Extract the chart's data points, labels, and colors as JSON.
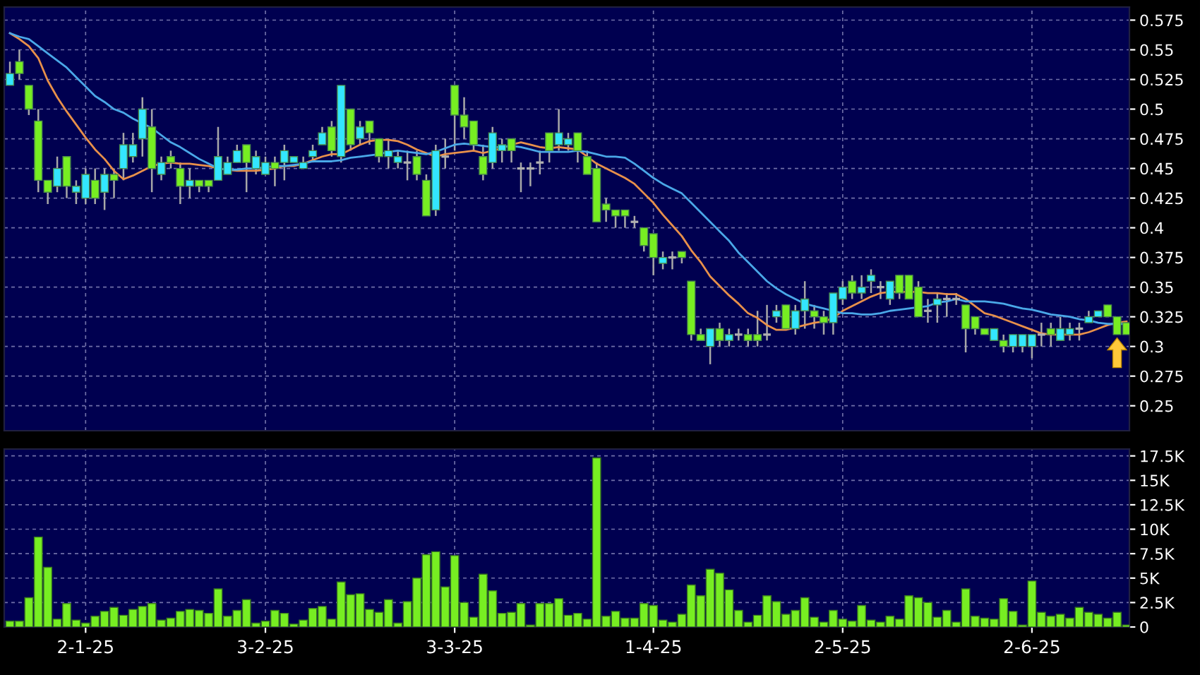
{
  "chart_data": [
    {
      "type": "candlestick",
      "categories": [
        null,
        null,
        null,
        null,
        null,
        null,
        null,
        null,
        null,
        null,
        null,
        null,
        null,
        null,
        null,
        null,
        null,
        null,
        null,
        null,
        null,
        null,
        null,
        null,
        null,
        null,
        null,
        null,
        null,
        null,
        null,
        null,
        null,
        null,
        null,
        null,
        null,
        null,
        null,
        null,
        null,
        null,
        null,
        null,
        null,
        null,
        null,
        null,
        null,
        null,
        null,
        null,
        null,
        null,
        null,
        null,
        null,
        null,
        null,
        null,
        null,
        null,
        null,
        null,
        null,
        null,
        null,
        null,
        null,
        null,
        null,
        null,
        null,
        null,
        null,
        null,
        null,
        null,
        null,
        null,
        null,
        null,
        null,
        null,
        null,
        null,
        null,
        null,
        null,
        null,
        null,
        null,
        null,
        null,
        null,
        null,
        null,
        null,
        null,
        null,
        null,
        null,
        null,
        null,
        null,
        null,
        null,
        null,
        null,
        null,
        null,
        null,
        null,
        null,
        null,
        null,
        null,
        null,
        null
      ],
      "ohlc": [
        [
          0.52,
          0.54,
          0.52,
          0.53
        ],
        [
          0.54,
          0.55,
          0.525,
          0.53
        ],
        [
          0.52,
          0.52,
          0.495,
          0.5
        ],
        [
          0.49,
          0.5,
          0.43,
          0.44
        ],
        [
          0.44,
          0.44,
          0.42,
          0.43
        ],
        [
          0.435,
          0.46,
          0.43,
          0.45
        ],
        [
          0.46,
          0.46,
          0.425,
          0.435
        ],
        [
          0.43,
          0.44,
          0.42,
          0.435
        ],
        [
          0.425,
          0.45,
          0.42,
          0.445
        ],
        [
          0.44,
          0.45,
          0.42,
          0.425
        ],
        [
          0.43,
          0.45,
          0.415,
          0.445
        ],
        [
          0.445,
          0.45,
          0.425,
          0.44
        ],
        [
          0.45,
          0.48,
          0.44,
          0.47
        ],
        [
          0.46,
          0.48,
          0.455,
          0.47
        ],
        [
          0.475,
          0.51,
          0.46,
          0.5
        ],
        [
          0.485,
          0.5,
          0.43,
          0.45
        ],
        [
          0.445,
          0.46,
          0.44,
          0.455
        ],
        [
          0.46,
          0.465,
          0.45,
          0.455
        ],
        [
          0.45,
          0.455,
          0.42,
          0.435
        ],
        [
          0.435,
          0.45,
          0.425,
          0.44
        ],
        [
          0.44,
          0.44,
          0.43,
          0.435
        ],
        [
          0.44,
          0.44,
          0.43,
          0.435
        ],
        [
          0.44,
          0.485,
          0.44,
          0.46
        ],
        [
          0.445,
          0.46,
          0.445,
          0.455
        ],
        [
          0.455,
          0.47,
          0.455,
          0.465
        ],
        [
          0.47,
          0.47,
          0.43,
          0.455
        ],
        [
          0.45,
          0.465,
          0.445,
          0.46
        ],
        [
          0.445,
          0.46,
          0.445,
          0.455
        ],
        [
          0.455,
          0.46,
          0.435,
          0.45
        ],
        [
          0.455,
          0.47,
          0.44,
          0.465
        ],
        [
          0.455,
          0.46,
          0.455,
          0.46
        ],
        [
          0.45,
          0.46,
          0.45,
          0.455
        ],
        [
          0.46,
          0.47,
          0.455,
          0.465
        ],
        [
          0.47,
          0.485,
          0.47,
          0.48
        ],
        [
          0.485,
          0.49,
          0.46,
          0.465
        ],
        [
          0.46,
          0.52,
          0.455,
          0.52
        ],
        [
          0.5,
          0.5,
          0.465,
          0.47
        ],
        [
          0.475,
          0.49,
          0.47,
          0.485
        ],
        [
          0.49,
          0.49,
          0.47,
          0.48
        ],
        [
          0.475,
          0.475,
          0.455,
          0.46
        ],
        [
          0.46,
          0.475,
          0.45,
          0.465
        ],
        [
          0.455,
          0.465,
          0.45,
          0.46
        ],
        [
          0.455,
          0.465,
          0.44,
          0.455
        ],
        [
          0.46,
          0.465,
          0.44,
          0.445
        ],
        [
          0.44,
          0.445,
          0.41,
          0.41
        ],
        [
          0.415,
          0.47,
          0.41,
          0.465
        ],
        [
          0.46,
          0.475,
          0.45,
          0.46
        ],
        [
          0.52,
          0.52,
          0.465,
          0.495
        ],
        [
          0.495,
          0.51,
          0.475,
          0.485
        ],
        [
          0.49,
          0.49,
          0.465,
          0.47
        ],
        [
          0.46,
          0.47,
          0.44,
          0.445
        ],
        [
          0.455,
          0.485,
          0.45,
          0.48
        ],
        [
          0.465,
          0.475,
          0.455,
          0.47
        ],
        [
          0.475,
          0.475,
          0.455,
          0.465
        ],
        [
          0.45,
          0.455,
          0.43,
          0.45
        ],
        [
          0.45,
          0.455,
          0.435,
          0.45
        ],
        [
          0.455,
          0.465,
          0.445,
          0.455
        ],
        [
          0.48,
          0.48,
          0.455,
          0.465
        ],
        [
          0.47,
          0.5,
          0.465,
          0.48
        ],
        [
          0.47,
          0.48,
          0.465,
          0.475
        ],
        [
          0.48,
          0.48,
          0.455,
          0.465
        ],
        [
          0.46,
          0.465,
          0.445,
          0.445
        ],
        [
          0.45,
          0.455,
          0.405,
          0.405
        ],
        [
          0.42,
          0.425,
          0.405,
          0.415
        ],
        [
          0.415,
          0.415,
          0.4,
          0.41
        ],
        [
          0.415,
          0.415,
          0.4,
          0.41
        ],
        [
          0.405,
          0.41,
          0.4,
          0.405
        ],
        [
          0.4,
          0.4,
          0.38,
          0.385
        ],
        [
          0.395,
          0.395,
          0.36,
          0.375
        ],
        [
          0.37,
          0.38,
          0.365,
          0.375
        ],
        [
          0.375,
          0.38,
          0.365,
          0.375
        ],
        [
          0.38,
          0.38,
          0.37,
          0.375
        ],
        [
          0.355,
          0.355,
          0.305,
          0.31
        ],
        [
          0.31,
          0.315,
          0.305,
          0.305
        ],
        [
          0.3,
          0.315,
          0.285,
          0.315
        ],
        [
          0.315,
          0.32,
          0.3,
          0.305
        ],
        [
          0.305,
          0.315,
          0.3,
          0.31
        ],
        [
          0.31,
          0.315,
          0.305,
          0.31
        ],
        [
          0.31,
          0.315,
          0.3,
          0.305
        ],
        [
          0.31,
          0.33,
          0.3,
          0.305
        ],
        [
          0.31,
          0.335,
          0.305,
          0.31
        ],
        [
          0.325,
          0.335,
          0.32,
          0.33
        ],
        [
          0.335,
          0.335,
          0.315,
          0.315
        ],
        [
          0.315,
          0.335,
          0.31,
          0.33
        ],
        [
          0.33,
          0.355,
          0.315,
          0.34
        ],
        [
          0.33,
          0.335,
          0.315,
          0.325
        ],
        [
          0.325,
          0.33,
          0.31,
          0.32
        ],
        [
          0.32,
          0.345,
          0.31,
          0.345
        ],
        [
          0.34,
          0.355,
          0.335,
          0.35
        ],
        [
          0.355,
          0.36,
          0.34,
          0.345
        ],
        [
          0.345,
          0.36,
          0.34,
          0.35
        ],
        [
          0.355,
          0.365,
          0.345,
          0.36
        ],
        [
          0.35,
          0.355,
          0.34,
          0.35
        ],
        [
          0.34,
          0.355,
          0.335,
          0.355
        ],
        [
          0.36,
          0.36,
          0.34,
          0.345
        ],
        [
          0.36,
          0.36,
          0.34,
          0.34
        ],
        [
          0.35,
          0.355,
          0.325,
          0.325
        ],
        [
          0.33,
          0.34,
          0.32,
          0.33
        ],
        [
          0.335,
          0.345,
          0.32,
          0.34
        ],
        [
          0.34,
          0.345,
          0.325,
          0.34
        ],
        [
          0.34,
          0.345,
          0.335,
          0.34
        ],
        [
          0.335,
          0.335,
          0.295,
          0.315
        ],
        [
          0.325,
          0.325,
          0.31,
          0.315
        ],
        [
          0.315,
          0.315,
          0.31,
          0.31
        ],
        [
          0.305,
          0.315,
          0.305,
          0.315
        ],
        [
          0.305,
          0.31,
          0.295,
          0.3
        ],
        [
          0.3,
          0.31,
          0.295,
          0.31
        ],
        [
          0.3,
          0.31,
          0.295,
          0.31
        ],
        [
          0.3,
          0.31,
          0.29,
          0.31
        ],
        [
          0.31,
          0.32,
          0.3,
          0.31
        ],
        [
          0.315,
          0.32,
          0.3,
          0.31
        ],
        [
          0.305,
          0.325,
          0.305,
          0.315
        ],
        [
          0.31,
          0.32,
          0.305,
          0.315
        ],
        [
          0.315,
          0.32,
          0.305,
          0.315
        ],
        [
          0.32,
          0.33,
          0.32,
          0.325
        ],
        [
          0.325,
          0.33,
          0.325,
          0.33
        ],
        [
          0.335,
          0.335,
          0.325,
          0.325
        ],
        [
          0.325,
          0.325,
          0.31,
          0.31
        ],
        [
          0.32,
          0.32,
          0.31,
          0.31
        ]
      ],
      "colors": [
        "#33e6ff",
        "#77ee22",
        "#77ee22",
        "#77ee22",
        "#77ee22",
        "#33e6ff",
        "#77ee22",
        "#33e6ff",
        "#33e6ff",
        "#77ee22",
        "#33e6ff",
        "#77ee22",
        "#33e6ff",
        "#33e6ff",
        "#33e6ff",
        "#77ee22",
        "#33e6ff",
        "#77ee22",
        "#77ee22",
        "#33e6ff",
        "#77ee22",
        "#77ee22",
        "#33e6ff",
        "#33e6ff",
        "#33e6ff",
        "#77ee22",
        "#33e6ff",
        "#33e6ff",
        "#77ee22",
        "#33e6ff",
        "#33e6ff",
        "#33e6ff",
        "#33e6ff",
        "#33e6ff",
        "#77ee22",
        "#33e6ff",
        "#77ee22",
        "#33e6ff",
        "#77ee22",
        "#77ee22",
        "#33e6ff",
        "#33e6ff",
        "#b0b0b0",
        "#77ee22",
        "#77ee22",
        "#33e6ff",
        "#b0b0b0",
        "#77ee22",
        "#77ee22",
        "#77ee22",
        "#77ee22",
        "#33e6ff",
        "#33e6ff",
        "#77ee22",
        "#b0b0b0",
        "#b0b0b0",
        "#b0b0b0",
        "#77ee22",
        "#33e6ff",
        "#33e6ff",
        "#77ee22",
        "#77ee22",
        "#77ee22",
        "#77ee22",
        "#77ee22",
        "#77ee22",
        "#b0b0b0",
        "#77ee22",
        "#77ee22",
        "#33e6ff",
        "#b0b0b0",
        "#77ee22",
        "#77ee22",
        "#77ee22",
        "#33e6ff",
        "#77ee22",
        "#33e6ff",
        "#b0b0b0",
        "#77ee22",
        "#77ee22",
        "#b0b0b0",
        "#33e6ff",
        "#77ee22",
        "#33e6ff",
        "#33e6ff",
        "#77ee22",
        "#77ee22",
        "#33e6ff",
        "#33e6ff",
        "#77ee22",
        "#33e6ff",
        "#33e6ff",
        "#b0b0b0",
        "#33e6ff",
        "#77ee22",
        "#77ee22",
        "#77ee22",
        "#b0b0b0",
        "#33e6ff",
        "#b0b0b0",
        "#b0b0b0",
        "#77ee22",
        "#77ee22",
        "#77ee22",
        "#33e6ff",
        "#77ee22",
        "#33e6ff",
        "#33e6ff",
        "#33e6ff",
        "#b0b0b0",
        "#77ee22",
        "#33e6ff",
        "#33e6ff",
        "#b0b0b0",
        "#33e6ff",
        "#33e6ff",
        "#77ee22",
        "#77ee22",
        "#77ee22"
      ],
      "series": [
        {
          "type": "line",
          "color": "#e8904a",
          "values": [
            0.564,
            0.559,
            0.553,
            0.543,
            0.524,
            0.51,
            0.498,
            0.487,
            0.476,
            0.466,
            0.458,
            0.448,
            0.441,
            0.444,
            0.448,
            0.452,
            0.454,
            0.455,
            0.454,
            0.454,
            0.453,
            0.452,
            0.45,
            0.449,
            0.448,
            0.448,
            0.448,
            0.449,
            0.45,
            0.452,
            0.452,
            0.454,
            0.457,
            0.46,
            0.462,
            0.462,
            0.466,
            0.47,
            0.473,
            0.474,
            0.474,
            0.473,
            0.47,
            0.466,
            0.463,
            0.46,
            0.462,
            0.463,
            0.464,
            0.465,
            0.463,
            0.465,
            0.467,
            0.47,
            0.472,
            0.47,
            0.468,
            0.467,
            0.468,
            0.467,
            0.466,
            0.46,
            0.454,
            0.45,
            0.446,
            0.442,
            0.437,
            0.429,
            0.421,
            0.411,
            0.402,
            0.393,
            0.381,
            0.371,
            0.359,
            0.351,
            0.343,
            0.336,
            0.328,
            0.324,
            0.318,
            0.314,
            0.314,
            0.316,
            0.318,
            0.32,
            0.321,
            0.324,
            0.33,
            0.334,
            0.338,
            0.342,
            0.345,
            0.346,
            0.346,
            0.346,
            0.346,
            0.345,
            0.345,
            0.344,
            0.344,
            0.34,
            0.334,
            0.328,
            0.326,
            0.323,
            0.32,
            0.317,
            0.314,
            0.311,
            0.31,
            0.31,
            0.31,
            0.31,
            0.312,
            0.315,
            0.318,
            0.32,
            0.321
          ]
        },
        {
          "type": "line",
          "color": "#4aa8e8",
          "values": [
            0.564,
            0.561,
            0.559,
            0.553,
            0.547,
            0.541,
            0.535,
            0.527,
            0.519,
            0.511,
            0.506,
            0.5,
            0.497,
            0.492,
            0.488,
            0.484,
            0.478,
            0.472,
            0.468,
            0.463,
            0.458,
            0.454,
            0.45,
            0.449,
            0.449,
            0.45,
            0.45,
            0.451,
            0.452,
            0.452,
            0.453,
            0.454,
            0.456,
            0.456,
            0.456,
            0.457,
            0.459,
            0.46,
            0.461,
            0.462,
            0.464,
            0.465,
            0.464,
            0.463,
            0.462,
            0.464,
            0.467,
            0.47,
            0.471,
            0.47,
            0.469,
            0.468,
            0.468,
            0.469,
            0.468,
            0.466,
            0.464,
            0.464,
            0.464,
            0.464,
            0.465,
            0.464,
            0.462,
            0.46,
            0.46,
            0.459,
            0.454,
            0.448,
            0.442,
            0.437,
            0.433,
            0.429,
            0.421,
            0.413,
            0.405,
            0.397,
            0.389,
            0.379,
            0.371,
            0.363,
            0.355,
            0.349,
            0.344,
            0.34,
            0.336,
            0.334,
            0.332,
            0.33,
            0.328,
            0.328,
            0.327,
            0.327,
            0.328,
            0.33,
            0.331,
            0.332,
            0.333,
            0.334,
            0.337,
            0.338,
            0.34,
            0.338,
            0.338,
            0.338,
            0.337,
            0.336,
            0.334,
            0.332,
            0.331,
            0.329,
            0.327,
            0.326,
            0.325,
            0.323,
            0.322,
            0.32,
            0.319,
            0.319,
            0.319
          ]
        }
      ],
      "ylim": [
        0.229,
        0.586
      ],
      "yticks": [
        0.25,
        0.275,
        0.3,
        0.325,
        0.35,
        0.375,
        0.4,
        0.425,
        0.45,
        0.475,
        0.5,
        0.525,
        0.55,
        0.575
      ],
      "grid": true,
      "tick_labels": "y"
    },
    {
      "type": "bar",
      "categories": [
        null,
        null,
        null,
        null,
        null,
        null,
        null,
        null,
        "2-1-25",
        null,
        null,
        null,
        null,
        null,
        null,
        null,
        null,
        null,
        null,
        null,
        null,
        null,
        null,
        null,
        null,
        null,
        null,
        "3-2-25",
        null,
        null,
        null,
        null,
        null,
        null,
        null,
        null,
        null,
        null,
        null,
        null,
        null,
        null,
        null,
        null,
        null,
        null,
        null,
        "3-3-25",
        null,
        null,
        null,
        null,
        null,
        null,
        null,
        null,
        null,
        null,
        null,
        null,
        null,
        null,
        null,
        null,
        null,
        null,
        null,
        null,
        "1-4-25",
        null,
        null,
        null,
        null,
        null,
        null,
        null,
        null,
        null,
        null,
        null,
        null,
        null,
        null,
        null,
        null,
        null,
        null,
        null,
        "2-5-25",
        null,
        null,
        null,
        null,
        null,
        null,
        null,
        null,
        null,
        null,
        null,
        null,
        null,
        null,
        null,
        null,
        null,
        null,
        null,
        "2-6-25",
        null,
        null,
        null,
        null,
        null,
        null,
        null,
        null,
        null,
        null
      ],
      "values": [
        0.6,
        0.6,
        3.0,
        9.2,
        6.1,
        0.8,
        2.4,
        0.7,
        0.4,
        1.1,
        1.6,
        2.0,
        1.2,
        1.8,
        2.1,
        2.4,
        0.7,
        0.9,
        1.6,
        1.8,
        1.7,
        1.4,
        3.9,
        1.1,
        1.7,
        2.8,
        0.4,
        0.6,
        1.7,
        1.4,
        0.3,
        0.7,
        1.9,
        2.1,
        0.8,
        4.6,
        3.3,
        3.4,
        1.8,
        1.5,
        2.8,
        0.4,
        2.6,
        5.0,
        7.4,
        7.7,
        4.1,
        7.3,
        2.5,
        1.0,
        5.4,
        3.7,
        1.4,
        1.5,
        2.4,
        0.2,
        2.4,
        2.4,
        2.9,
        1.2,
        1.4,
        0.8,
        17.3,
        1.1,
        1.6,
        0.9,
        0.9,
        2.4,
        2.2,
        0.7,
        0.5,
        1.3,
        4.3,
        3.2,
        5.9,
        5.5,
        3.8,
        1.7,
        0.5,
        1.2,
        3.2,
        2.6,
        1.3,
        1.7,
        3.0,
        1.0,
        0.5,
        1.7,
        0.8,
        0.6,
        2.2,
        0.7,
        0.5,
        1.1,
        0.8,
        3.2,
        3.0,
        2.5,
        1.0,
        1.7,
        0.5,
        3.9,
        1.1,
        0.9,
        0.8,
        2.9,
        1.6,
        0.2,
        4.7,
        1.5,
        1.1,
        1.3,
        0.9,
        2.0,
        1.5,
        1.3,
        0.9,
        1.5,
        0.2
      ],
      "color": "#77ee22",
      "ylim": [
        0,
        18.2
      ],
      "yticks": [
        0,
        {
          "value": 2.5,
          "label": "2.5K"
        },
        {
          "value": 5,
          "label": "5K"
        },
        {
          "value": 7.5,
          "label": "7.5K"
        },
        {
          "value": 10,
          "label": "10K"
        },
        {
          "value": 12.5,
          "label": "12.5K"
        },
        {
          "value": 15,
          "label": "15K"
        },
        {
          "value": 17.5,
          "label": "17.5K"
        }
      ],
      "grid": true
    }
  ]
}
